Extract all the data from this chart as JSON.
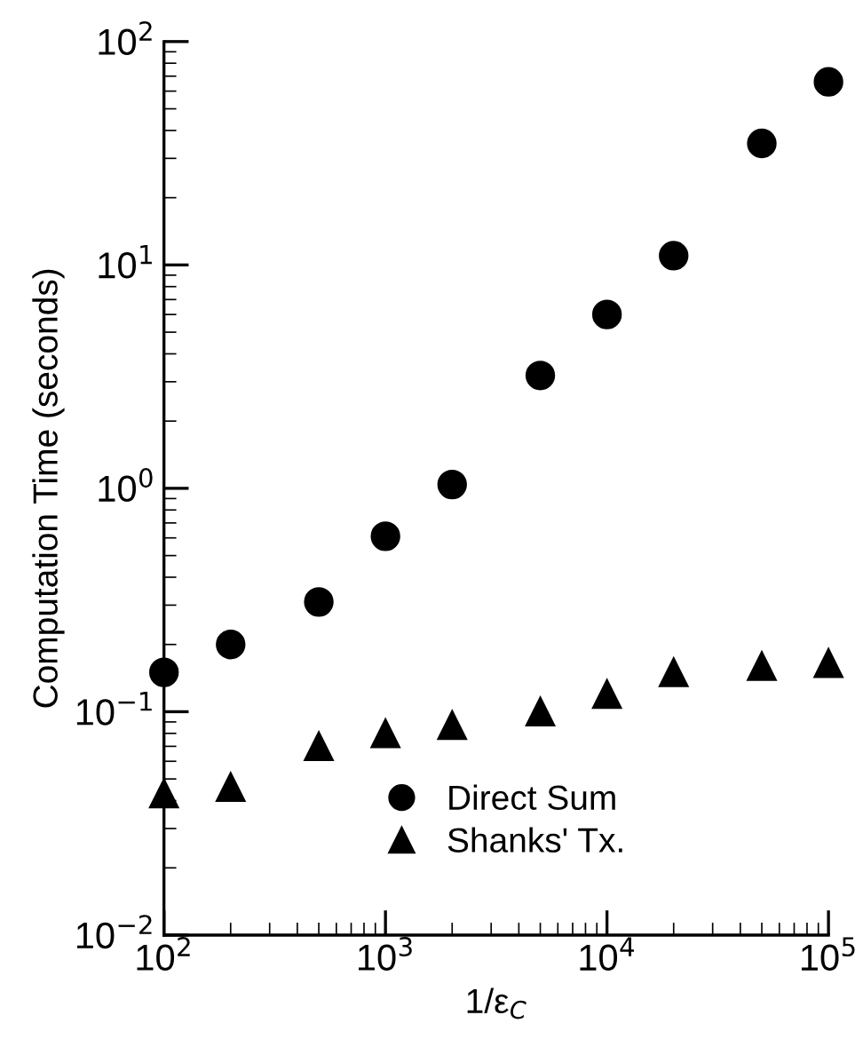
{
  "chart_data": {
    "type": "scatter",
    "xlabel": "1/ε$_{C}$",
    "ylabel": "Computation Time (seconds)",
    "x": [
      100,
      200,
      500,
      1000,
      2000,
      5000,
      10000,
      20000,
      50000,
      100000
    ],
    "series": [
      {
        "name": "Direct Sum",
        "color": "#000000",
        "marker": "circle",
        "values": [
          0.15,
          0.2,
          0.31,
          0.61,
          1.04,
          3.2,
          6.0,
          11,
          35,
          66
        ]
      },
      {
        "name": "Shanks' Tx.",
        "color": "#000000",
        "marker": "triangle",
        "values": [
          0.043,
          0.046,
          0.07,
          0.08,
          0.087,
          0.1,
          0.12,
          0.15,
          0.16,
          0.165
        ]
      }
    ],
    "log": "xy",
    "xlim": [
      100,
      100000
    ],
    "ylim": [
      0.01,
      100
    ],
    "xticks": [
      {
        "value": 100,
        "label": "10$^{2}$"
      },
      {
        "value": 1000,
        "label": "10$^{3}$"
      },
      {
        "value": 10000,
        "label": "10$^{4}$"
      },
      {
        "value": 100000,
        "label": "10$^{5}$"
      }
    ],
    "yticks": [
      {
        "value": 0.01,
        "label": "10$^{−2}$"
      },
      {
        "value": 0.1,
        "label": "10$^{−1}$"
      },
      {
        "value": 1,
        "label": "10$^{0}$"
      },
      {
        "value": 10,
        "label": "10$^{1}$"
      },
      {
        "value": 100,
        "label": "10$^{2}$"
      }
    ],
    "grid": false,
    "legend": "bottom"
  }
}
